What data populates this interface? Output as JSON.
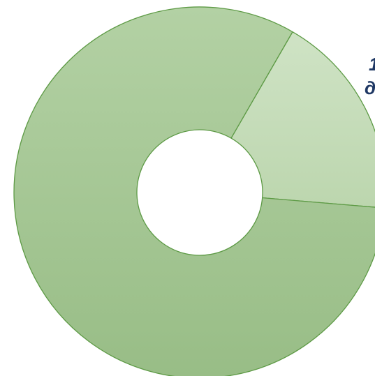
{
  "chart_data": {
    "type": "pie",
    "style": "donut",
    "values": [
      18,
      82
    ],
    "colors": [
      "#c5ddb9",
      "#a6c796"
    ],
    "stroke_color": "#5d9a45",
    "clipped_text_fragments": [
      "1",
      "д"
    ],
    "legend": "none",
    "grid": false
  }
}
